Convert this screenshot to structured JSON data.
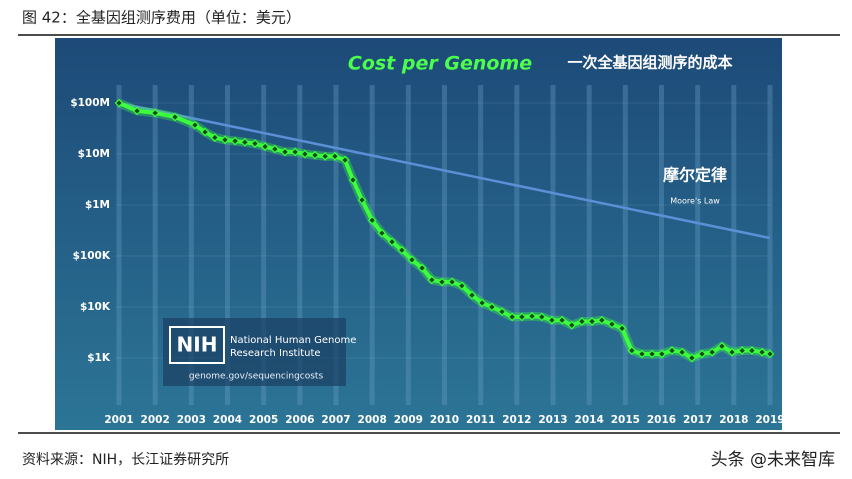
{
  "header": {
    "title": "图 42：全基因组测序费用（单位：美元）"
  },
  "chart_data": {
    "type": "line",
    "title": "Cost per Genome",
    "subtitle": "一次全基因组测序的成本",
    "log_scale_y": true,
    "grid": true,
    "xlim": [
      2001,
      2019
    ],
    "xticks": [
      2001,
      2002,
      2003,
      2004,
      2005,
      2006,
      2007,
      2008,
      2009,
      2010,
      2011,
      2012,
      2013,
      2014,
      2015,
      2016,
      2017,
      2018,
      2019
    ],
    "ylim": [
      150,
      180000000
    ],
    "yticks": [
      {
        "value": 1000,
        "label": "$1K"
      },
      {
        "value": 10000,
        "label": "$10K"
      },
      {
        "value": 100000,
        "label": "$100K"
      },
      {
        "value": 1000000,
        "label": "$1M"
      },
      {
        "value": 10000000,
        "label": "$10M"
      },
      {
        "value": 100000000,
        "label": "$100M"
      }
    ],
    "series": [
      {
        "color": "#3cff3c",
        "x": [
          2001.0,
          2001.5,
          2002.0,
          2002.55,
          2003.1,
          2003.38,
          2003.65,
          2003.93,
          2004.21,
          2004.48,
          2004.76,
          2005.04,
          2005.31,
          2005.59,
          2005.87,
          2006.14,
          2006.42,
          2006.7,
          2006.97,
          2007.25,
          2007.47,
          2007.72,
          2008.0,
          2008.27,
          2008.55,
          2008.82,
          2009.1,
          2009.38,
          2009.65,
          2009.93,
          2010.21,
          2010.48,
          2010.76,
          2011.04,
          2011.31,
          2011.59,
          2011.87,
          2012.14,
          2012.42,
          2012.69,
          2012.97,
          2013.25,
          2013.52,
          2013.8,
          2014.08,
          2014.35,
          2014.63,
          2014.91,
          2015.18,
          2015.46,
          2015.74,
          2016.01,
          2016.29,
          2016.57,
          2016.84,
          2017.12,
          2017.4,
          2017.67,
          2017.95,
          2018.23,
          2018.5,
          2018.78,
          2019.0
        ],
        "values": [
          100000000,
          70000000,
          64000000,
          53000000,
          37000000,
          27000000,
          21000000,
          19000000,
          18000000,
          17000000,
          16000000,
          14000000,
          12500000,
          11000000,
          11000000,
          10000000,
          9500000,
          9000000,
          9000000,
          7600000,
          3100000,
          1250000,
          500000,
          280000,
          190000,
          130000,
          84000,
          58000,
          34000,
          31000,
          31000,
          26000,
          17000,
          12000,
          10000,
          8100,
          6400,
          6400,
          6600,
          6400,
          5500,
          5500,
          4400,
          5200,
          5200,
          5500,
          4600,
          3800,
          1400,
          1200,
          1200,
          1200,
          1400,
          1300,
          1000,
          1200,
          1300,
          1700,
          1300,
          1400,
          1400,
          1300,
          1200
        ]
      },
      {
        "name": "Moore's Law",
        "color": "#5b8fd6",
        "x": [
          2001,
          2019
        ],
        "values": [
          100000000,
          225000
        ]
      }
    ],
    "annotations": [
      "摩尔定律"
    ]
  },
  "logo": {
    "mark": "NIH",
    "lines": [
      "National Human Genome",
      "Research Institute"
    ],
    "url": "genome.gov/sequencingcosts"
  },
  "footer": {
    "source": "资料来源：NIH，长江证券研究所",
    "watermark": "头条 @未来智库"
  }
}
